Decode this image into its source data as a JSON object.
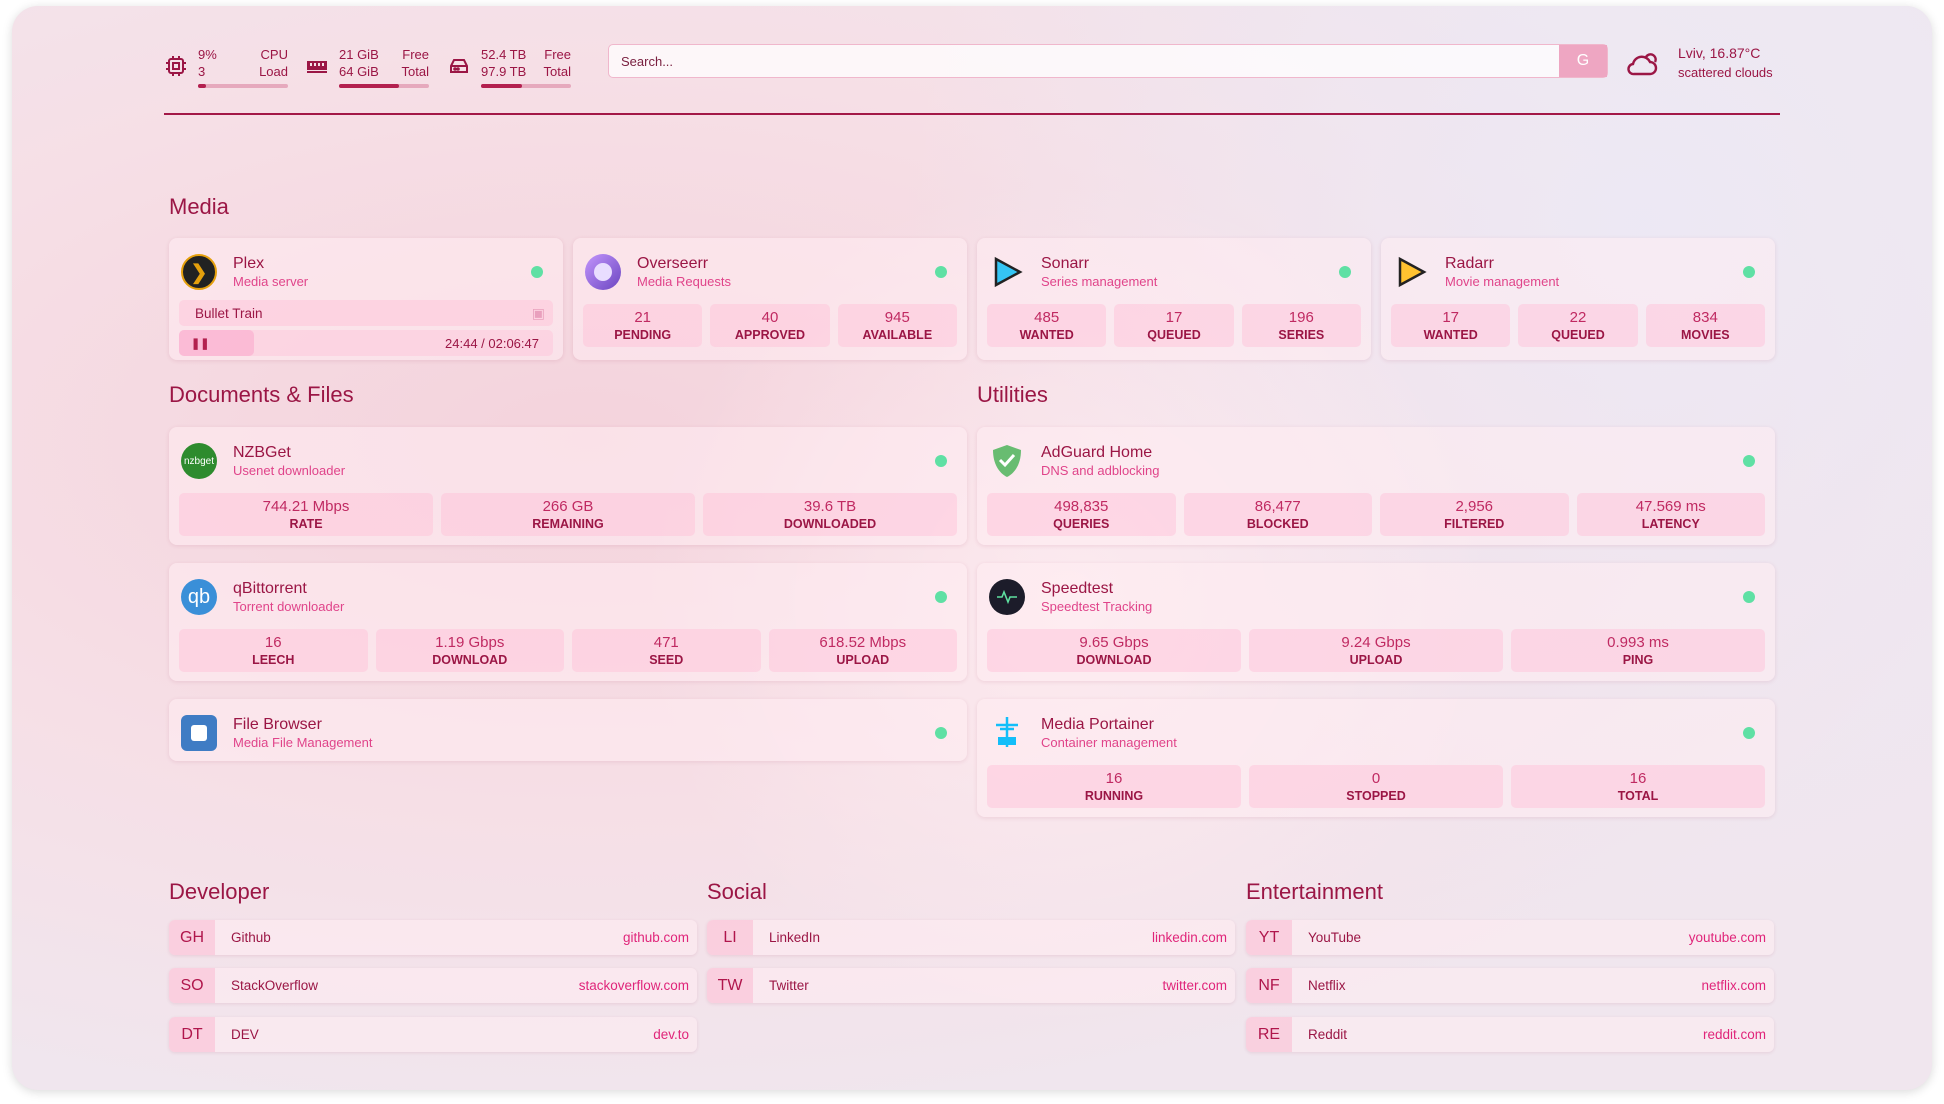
{
  "resources": {
    "cpu": {
      "icon": "cpu-icon",
      "value": "9%",
      "value2": "3",
      "label": "CPU",
      "label2": "Load",
      "percent": 9
    },
    "memory": {
      "icon": "memory-icon",
      "value": "21 GiB",
      "value2": "64 GiB",
      "label": "Free",
      "label2": "Total",
      "percent": 67
    },
    "disk": {
      "icon": "disk-icon",
      "value": "52.4 TB",
      "value2": "97.9 TB",
      "label": "Free",
      "label2": "Total",
      "percent": 46
    }
  },
  "search": {
    "placeholder": "Search...",
    "provider": "G"
  },
  "weather": {
    "icon": "cloud-icon",
    "location": "Lviv, 16.87°C",
    "condition": "scattered clouds"
  },
  "colors": {
    "accent": "#9b1645",
    "status_up": "#5fe0a4",
    "link": "#e0257a"
  },
  "sections": {
    "media": "Media",
    "docs": "Documents & Files",
    "utilities": "Utilities",
    "developer": "Developer",
    "social": "Social",
    "entertainment": "Entertainment"
  },
  "services": [
    {
      "id": "plex",
      "name": "Plex",
      "desc": "Media server",
      "icon": "plex-icon",
      "now_playing": {
        "title": "Bullet Train",
        "time": "24:44 / 02:06:47",
        "state": "paused"
      }
    },
    {
      "id": "overseerr",
      "name": "Overseerr",
      "desc": "Media Requests",
      "icon": "overseerr-icon",
      "stats": [
        {
          "v": "21",
          "l": "PENDING"
        },
        {
          "v": "40",
          "l": "APPROVED"
        },
        {
          "v": "945",
          "l": "AVAILABLE"
        }
      ]
    },
    {
      "id": "sonarr",
      "name": "Sonarr",
      "desc": "Series management",
      "icon": "sonarr-icon",
      "stats": [
        {
          "v": "485",
          "l": "WANTED"
        },
        {
          "v": "17",
          "l": "QUEUED"
        },
        {
          "v": "196",
          "l": "SERIES"
        }
      ]
    },
    {
      "id": "radarr",
      "name": "Radarr",
      "desc": "Movie management",
      "icon": "radarr-icon",
      "stats": [
        {
          "v": "17",
          "l": "WANTED"
        },
        {
          "v": "22",
          "l": "QUEUED"
        },
        {
          "v": "834",
          "l": "MOVIES"
        }
      ]
    },
    {
      "id": "nzbget",
      "name": "NZBGet",
      "desc": "Usenet downloader",
      "icon": "nzbget-icon",
      "logo_text": "nzbget",
      "stats": [
        {
          "v": "744.21 Mbps",
          "l": "RATE"
        },
        {
          "v": "266 GB",
          "l": "REMAINING"
        },
        {
          "v": "39.6 TB",
          "l": "DOWNLOADED"
        }
      ]
    },
    {
      "id": "qbittorrent",
      "name": "qBittorrent",
      "desc": "Torrent downloader",
      "icon": "qbittorrent-icon",
      "logo_text": "qb",
      "stats": [
        {
          "v": "16",
          "l": "LEECH"
        },
        {
          "v": "1.19 Gbps",
          "l": "DOWNLOAD"
        },
        {
          "v": "471",
          "l": "SEED"
        },
        {
          "v": "618.52 Mbps",
          "l": "UPLOAD"
        }
      ]
    },
    {
      "id": "filebrowser",
      "name": "File Browser",
      "desc": "Media File Management",
      "icon": "file-browser-icon"
    },
    {
      "id": "adguard",
      "name": "AdGuard Home",
      "desc": "DNS and adblocking",
      "icon": "adguard-shield-icon",
      "stats": [
        {
          "v": "498,835",
          "l": "QUERIES"
        },
        {
          "v": "86,477",
          "l": "BLOCKED"
        },
        {
          "v": "2,956",
          "l": "FILTERED"
        },
        {
          "v": "47.569 ms",
          "l": "LATENCY"
        }
      ]
    },
    {
      "id": "speedtest",
      "name": "Speedtest",
      "desc": "Speedtest Tracking",
      "icon": "speedtest-icon",
      "stats": [
        {
          "v": "9.65 Gbps",
          "l": "DOWNLOAD"
        },
        {
          "v": "9.24 Gbps",
          "l": "UPLOAD"
        },
        {
          "v": "0.993 ms",
          "l": "PING"
        }
      ]
    },
    {
      "id": "portainer",
      "name": "Media Portainer",
      "desc": "Container management",
      "icon": "portainer-icon",
      "stats": [
        {
          "v": "16",
          "l": "RUNNING"
        },
        {
          "v": "0",
          "l": "STOPPED"
        },
        {
          "v": "16",
          "l": "TOTAL"
        }
      ]
    }
  ],
  "bookmarks": [
    [
      {
        "abbr": "GH",
        "name": "Github",
        "url": "github.com"
      },
      {
        "abbr": "SO",
        "name": "StackOverflow",
        "url": "stackoverflow.com"
      },
      {
        "abbr": "DT",
        "name": "DEV",
        "url": "dev.to"
      }
    ],
    [
      {
        "abbr": "LI",
        "name": "LinkedIn",
        "url": "linkedin.com"
      },
      {
        "abbr": "TW",
        "name": "Twitter",
        "url": "twitter.com"
      }
    ],
    [
      {
        "abbr": "YT",
        "name": "YouTube",
        "url": "youtube.com"
      },
      {
        "abbr": "NF",
        "name": "Netflix",
        "url": "netflix.com"
      },
      {
        "abbr": "RE",
        "name": "Reddit",
        "url": "reddit.com"
      }
    ]
  ]
}
